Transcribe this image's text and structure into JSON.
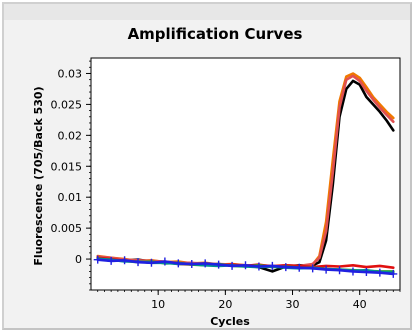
{
  "chart_data": {
    "type": "line",
    "title": "Amplification Curves",
    "xlabel": "Cycles",
    "ylabel": "Fluorescence (705/Back 530)",
    "xlim": [
      0,
      46
    ],
    "ylim": [
      -0.005,
      0.0325
    ],
    "xticks": [
      10,
      20,
      30,
      40
    ],
    "yticks": [
      0,
      0.005,
      0.01,
      0.015,
      0.02,
      0.025,
      0.03
    ],
    "ytick_labels": [
      "0",
      "0.005",
      "0.01",
      "0.015",
      "0.02",
      "0.025",
      "0.03"
    ],
    "grid": false,
    "legend": "none",
    "series": [
      {
        "color": "#000000",
        "x": [
          1,
          3,
          5,
          7,
          9,
          11,
          13,
          15,
          17,
          19,
          21,
          23,
          25,
          27,
          29,
          31,
          33,
          34,
          35,
          36,
          37,
          38,
          39,
          40,
          41,
          42,
          43,
          44,
          45
        ],
        "y": [
          0.0003,
          0.0001,
          -0.0002,
          -0.0001,
          -0.0004,
          -0.0005,
          -0.0006,
          -0.0008,
          -0.0009,
          -0.0008,
          -0.001,
          -0.0011,
          -0.0013,
          -0.002,
          -0.0012,
          -0.001,
          -0.001,
          -0.0005,
          0.003,
          0.012,
          0.023,
          0.0275,
          0.0288,
          0.0282,
          0.0262,
          0.025,
          0.0238,
          0.0224,
          0.0208
        ]
      },
      {
        "color": "#f07800",
        "x": [
          1,
          3,
          5,
          7,
          9,
          11,
          13,
          15,
          17,
          19,
          21,
          23,
          25,
          27,
          29,
          31,
          33,
          34,
          35,
          36,
          37,
          38,
          39,
          40,
          41,
          42,
          43,
          44,
          45
        ],
        "y": [
          0.0005,
          0.0002,
          0.0,
          -0.0003,
          -0.0002,
          -0.0005,
          -0.0004,
          -0.0007,
          -0.0006,
          -0.0009,
          -0.0008,
          -0.001,
          -0.0011,
          -0.0012,
          -0.0011,
          -0.0012,
          -0.0009,
          0.0005,
          0.006,
          0.016,
          0.0255,
          0.0295,
          0.03,
          0.0293,
          0.0278,
          0.0262,
          0.025,
          0.0238,
          0.0228
        ]
      },
      {
        "color": "#e05050",
        "x": [
          1,
          3,
          5,
          7,
          9,
          11,
          13,
          15,
          17,
          19,
          21,
          23,
          25,
          27,
          29,
          31,
          33,
          34,
          35,
          36,
          37,
          38,
          39,
          40,
          41,
          42,
          43,
          44,
          45
        ],
        "y": [
          0.0004,
          0.0002,
          -0.0001,
          -0.0002,
          -0.0003,
          -0.0004,
          -0.0006,
          -0.0006,
          -0.0008,
          -0.0008,
          -0.0009,
          -0.001,
          -0.001,
          -0.0011,
          -0.001,
          -0.0011,
          -0.0008,
          0.0002,
          0.0045,
          0.014,
          0.0245,
          0.029,
          0.0296,
          0.0288,
          0.0272,
          0.0258,
          0.0245,
          0.0233,
          0.0222
        ]
      },
      {
        "color": "#e01010",
        "x": [
          1,
          3,
          5,
          7,
          9,
          11,
          13,
          15,
          17,
          19,
          21,
          23,
          25,
          27,
          29,
          31,
          33,
          35,
          37,
          39,
          41,
          43,
          45
        ],
        "y": [
          0.0002,
          0.0,
          -0.0003,
          -0.0004,
          -0.0006,
          -0.0005,
          -0.0008,
          -0.0009,
          -0.0007,
          -0.001,
          -0.0009,
          -0.0011,
          -0.0009,
          -0.0012,
          -0.001,
          -0.0011,
          -0.0013,
          -0.0011,
          -0.0012,
          -0.001,
          -0.0013,
          -0.0011,
          -0.0014
        ]
      },
      {
        "color": "#30a030",
        "x": [
          1,
          3,
          5,
          7,
          9,
          11,
          13,
          15,
          17,
          19,
          21,
          23,
          25,
          27,
          29,
          31,
          33,
          35,
          37,
          39,
          41,
          43,
          45
        ],
        "y": [
          0.0001,
          -0.0002,
          -0.0003,
          -0.0005,
          -0.0004,
          -0.0007,
          -0.0006,
          -0.0009,
          -0.001,
          -0.0008,
          -0.0011,
          -0.0012,
          -0.001,
          -0.0013,
          -0.0012,
          -0.0014,
          -0.0015,
          -0.0016,
          -0.0017,
          -0.0018,
          -0.0019,
          -0.002,
          -0.002
        ]
      },
      {
        "color": "#009090",
        "x": [
          1,
          3,
          5,
          7,
          9,
          11,
          13,
          15,
          17,
          19,
          21,
          23,
          25,
          27,
          29,
          31,
          33,
          35,
          37,
          39,
          41,
          43,
          45
        ],
        "y": [
          0.0,
          -0.0001,
          -0.0004,
          -0.0004,
          -0.0006,
          -0.0006,
          -0.0008,
          -0.0008,
          -0.001,
          -0.0011,
          -0.001,
          -0.0012,
          -0.0013,
          -0.0012,
          -0.0014,
          -0.0015,
          -0.0014,
          -0.0016,
          -0.0017,
          -0.0019,
          -0.0018,
          -0.0021,
          -0.0022
        ]
      },
      {
        "color": "#2020e0",
        "marker": "plus",
        "x": [
          1,
          3,
          5,
          7,
          9,
          11,
          13,
          15,
          17,
          19,
          21,
          23,
          25,
          27,
          29,
          31,
          33,
          35,
          37,
          39,
          41,
          43,
          45
        ],
        "y": [
          -0.0001,
          -0.0003,
          -0.0002,
          -0.0005,
          -0.0006,
          -0.0004,
          -0.0007,
          -0.0008,
          -0.0007,
          -0.0009,
          -0.0011,
          -0.001,
          -0.0012,
          -0.0011,
          -0.0013,
          -0.0014,
          -0.0015,
          -0.0017,
          -0.0018,
          -0.002,
          -0.0021,
          -0.0022,
          -0.0024
        ]
      }
    ]
  }
}
